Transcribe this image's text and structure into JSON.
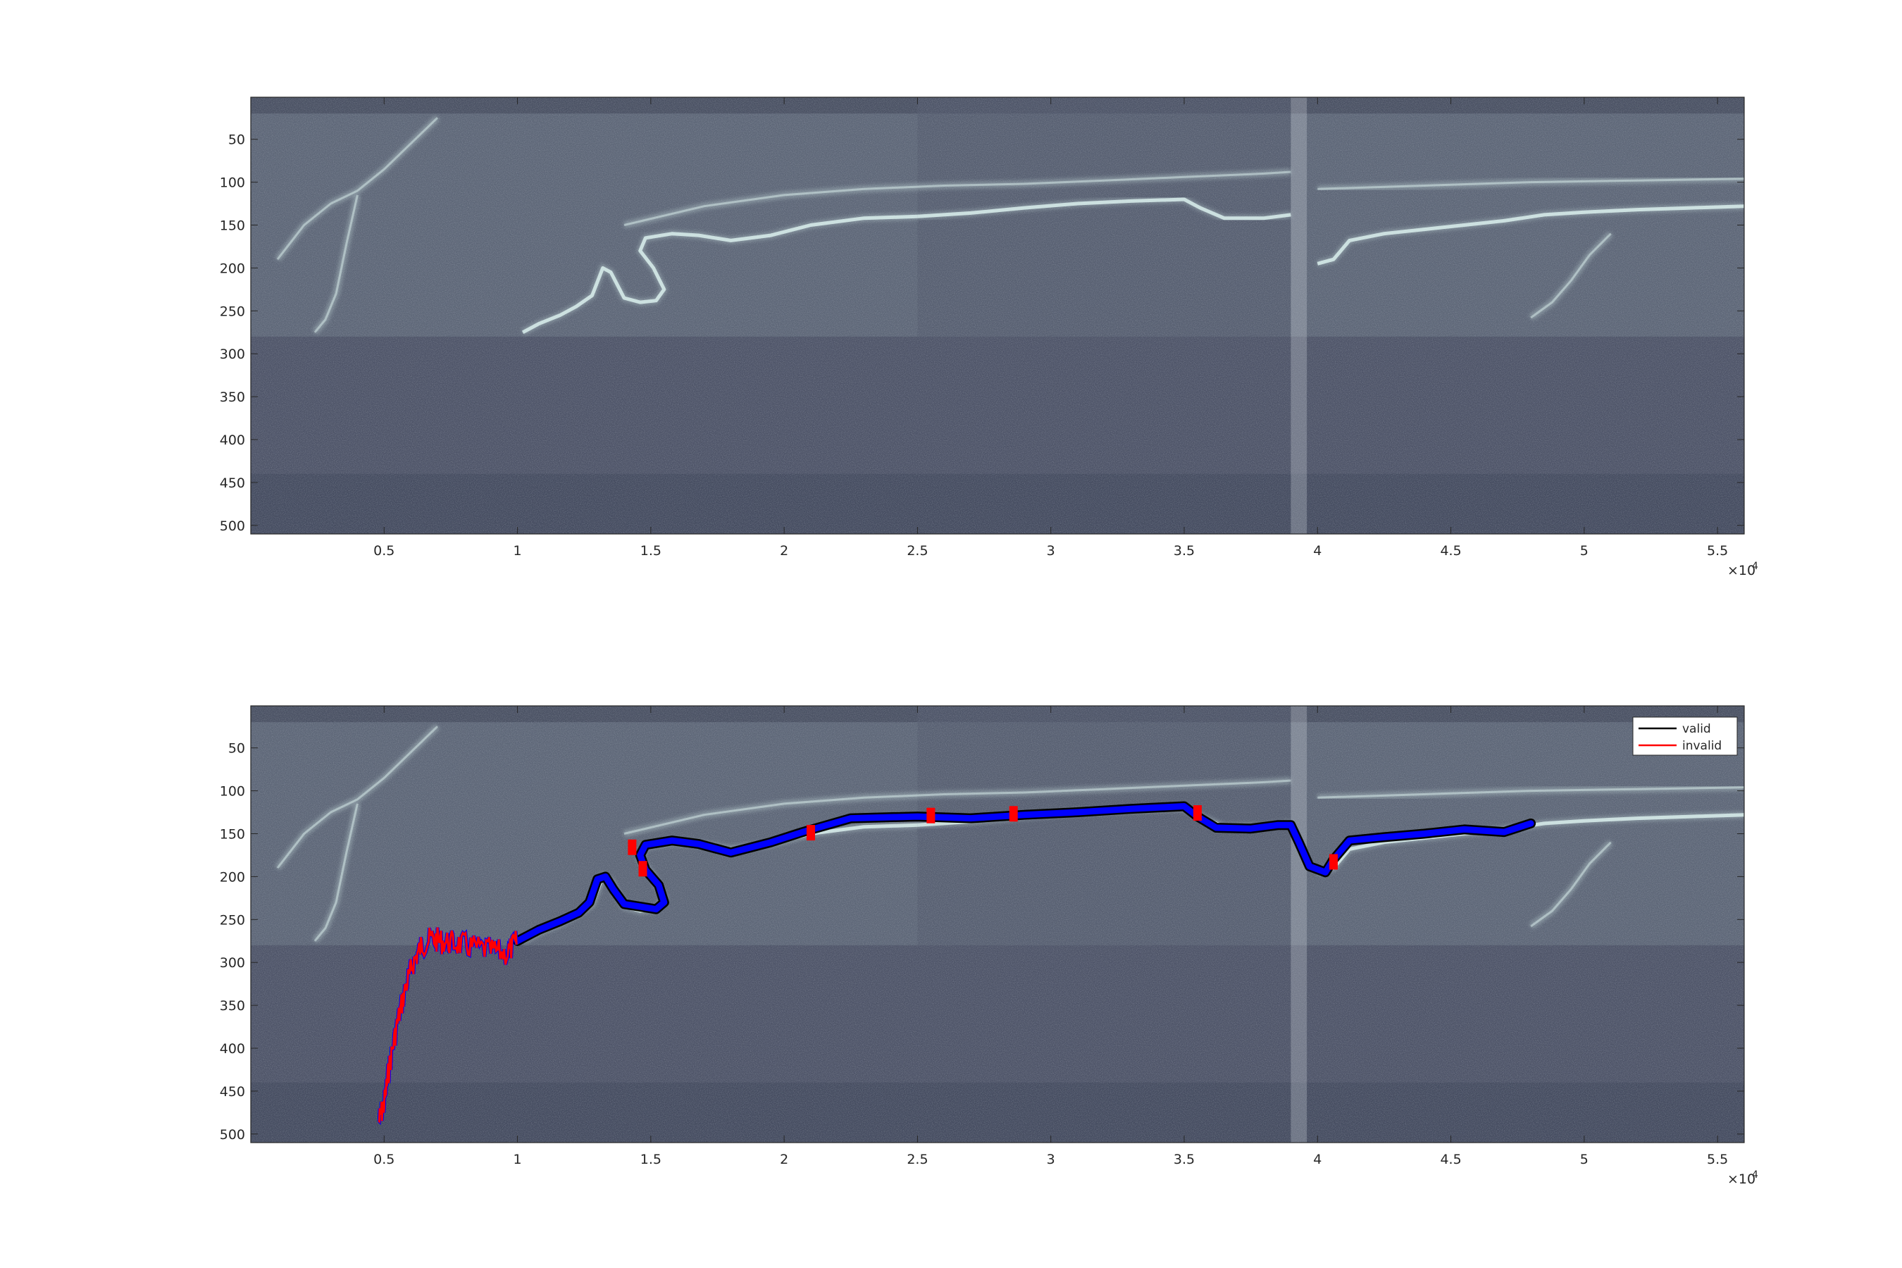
{
  "chart_data": [
    {
      "type": "heatmap",
      "image_colormap": "bone",
      "xlim": [
        0,
        56000
      ],
      "ylim": [
        510,
        1
      ],
      "y_reversed": true,
      "xticks": [
        5000,
        10000,
        15000,
        20000,
        25000,
        30000,
        35000,
        40000,
        45000,
        50000,
        55000
      ],
      "xtick_labels": [
        "0.5",
        "1",
        "1.5",
        "2",
        "2.5",
        "3",
        "3.5",
        "4",
        "4.5",
        "5",
        "5.5"
      ],
      "x_exponent": "×10",
      "x_exponent_power": "4",
      "yticks": [
        50,
        100,
        150,
        200,
        250,
        300,
        350,
        400,
        450,
        500
      ],
      "ytick_labels": [
        "50",
        "100",
        "150",
        "200",
        "250",
        "300",
        "350",
        "400",
        "450",
        "500"
      ],
      "surface_ridge_y": 20,
      "layer_boundary_y": 280,
      "segment_boundaries_x": [
        25000,
        39000,
        39600
      ],
      "bright_features": [
        {
          "x": [
            10200,
            10800,
            11600,
            12200,
            12800,
            13200,
            13500,
            14000,
            14600,
            15200,
            15500,
            15100,
            14600,
            14800,
            15800,
            16800,
            18000,
            19500,
            21000,
            23000,
            25000
          ],
          "y": [
            275,
            265,
            255,
            245,
            232,
            200,
            205,
            235,
            240,
            238,
            225,
            200,
            180,
            165,
            160,
            162,
            168,
            162,
            150,
            142,
            140
          ]
        },
        {
          "x": [
            25000,
            27000,
            29000,
            31000,
            33000,
            35000,
            35600,
            36500,
            38000,
            39000
          ],
          "y": [
            140,
            136,
            130,
            125,
            122,
            120,
            130,
            142,
            142,
            138
          ]
        },
        {
          "x": [
            40000,
            40600,
            41200,
            42500,
            44000,
            45500,
            47000,
            48500,
            50000,
            52000,
            54000,
            56000
          ],
          "y": [
            195,
            190,
            168,
            160,
            155,
            150,
            145,
            138,
            135,
            132,
            130,
            128
          ]
        },
        {
          "x": [
            14000,
            17000,
            20000,
            23000,
            26000,
            29000,
            32000,
            35000,
            38000,
            39000
          ],
          "y": [
            150,
            128,
            115,
            108,
            104,
            102,
            98,
            94,
            90,
            88
          ]
        },
        {
          "x": [
            40000,
            44000,
            48000,
            52000,
            56000
          ],
          "y": [
            108,
            104,
            100,
            98,
            96
          ]
        },
        {
          "x": [
            7000,
            6000,
            5000,
            4000,
            3000,
            2000,
            1000
          ],
          "y": [
            25,
            55,
            85,
            110,
            125,
            150,
            190
          ]
        },
        {
          "x": [
            4000,
            3600,
            3200,
            2800,
            2400
          ],
          "y": [
            115,
            170,
            230,
            260,
            275
          ]
        },
        {
          "x": [
            51000,
            50200,
            49500,
            48800,
            48000
          ],
          "y": [
            160,
            185,
            215,
            240,
            258
          ]
        }
      ]
    },
    {
      "type": "line",
      "image_colormap": "bone",
      "xlim": [
        0,
        56000
      ],
      "ylim": [
        510,
        1
      ],
      "y_reversed": true,
      "xticks": [
        5000,
        10000,
        15000,
        20000,
        25000,
        30000,
        35000,
        40000,
        45000,
        50000,
        55000
      ],
      "xtick_labels": [
        "0.5",
        "1",
        "1.5",
        "2",
        "2.5",
        "3",
        "3.5",
        "4",
        "4.5",
        "5",
        "5.5"
      ],
      "x_exponent": "×10",
      "x_exponent_power": "4",
      "yticks": [
        50,
        100,
        150,
        200,
        250,
        300,
        350,
        400,
        450,
        500
      ],
      "ytick_labels": [
        "50",
        "100",
        "150",
        "200",
        "250",
        "300",
        "350",
        "400",
        "450",
        "500"
      ],
      "legend_position": "top-right",
      "series": [
        {
          "name": "valid",
          "color": "#000000",
          "x": [
            10000,
            10800,
            11600,
            12300,
            12700,
            13000,
            13300,
            13600,
            14000,
            14600,
            15200,
            15500,
            15300,
            14800,
            14600,
            14800,
            15800,
            16800,
            18000,
            19500,
            20700,
            22500,
            25000,
            27000,
            29000,
            31000,
            33000,
            35000,
            35500,
            36200,
            37500,
            38500,
            39000,
            39300,
            39700,
            40300,
            40600,
            41200,
            42500,
            44000,
            45500,
            47000,
            48000
          ],
          "y": [
            275,
            262,
            252,
            242,
            230,
            203,
            200,
            215,
            232,
            235,
            238,
            230,
            210,
            192,
            175,
            163,
            158,
            162,
            172,
            160,
            148,
            132,
            130,
            132,
            128,
            125,
            121,
            118,
            130,
            143,
            144,
            140,
            140,
            160,
            188,
            195,
            180,
            158,
            154,
            150,
            145,
            148,
            138
          ]
        },
        {
          "name": "invalid",
          "color": "#ff0000",
          "x": [
            4800,
            5000,
            5200,
            5500,
            5800,
            6100,
            6400,
            6800,
            7200,
            7700,
            8300,
            9000,
            9600,
            10000
          ],
          "y": [
            485,
            465,
            420,
            370,
            330,
            300,
            280,
            272,
            276,
            278,
            282,
            286,
            290,
            275
          ]
        },
        {
          "name": "",
          "color": "#0000ff",
          "x": [
            10000,
            10800,
            11600,
            12300,
            12700,
            13000,
            13300,
            13600,
            14000,
            14600,
            15200,
            15500,
            15300,
            14800,
            14600,
            14800,
            15800,
            16800,
            18000,
            19500,
            20700,
            22500,
            25000,
            27000,
            29000,
            31000,
            33000,
            35000,
            35500,
            36200,
            37500,
            38500,
            39000,
            39300,
            39700,
            40300,
            40600,
            41200,
            42500,
            44000,
            45500,
            47000,
            48000
          ],
          "y": [
            275,
            262,
            252,
            242,
            230,
            203,
            200,
            215,
            232,
            235,
            238,
            230,
            210,
            192,
            175,
            163,
            158,
            162,
            172,
            160,
            148,
            132,
            130,
            132,
            128,
            125,
            121,
            118,
            130,
            143,
            144,
            140,
            140,
            160,
            188,
            195,
            180,
            158,
            154,
            150,
            145,
            148,
            138
          ]
        }
      ]
    }
  ]
}
